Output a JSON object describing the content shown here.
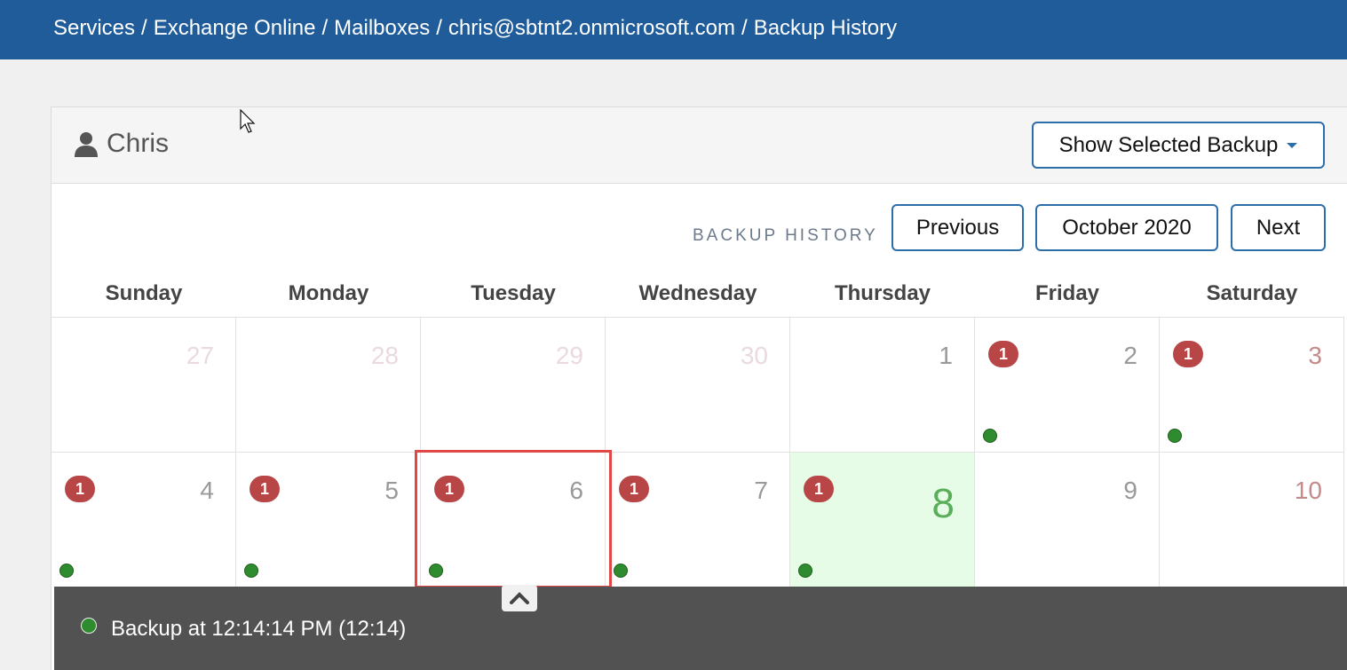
{
  "breadcrumb": [
    "Services",
    "Exchange Online",
    "Mailboxes",
    "chris@sbtnt2.onmicrosoft.com",
    "Backup History"
  ],
  "user": {
    "name": "Chris",
    "icon": "user-icon"
  },
  "show_backup_button": "Show Selected Backup",
  "section_label": "BACKUP HISTORY",
  "nav": {
    "previous": "Previous",
    "month": "October 2020",
    "next": "Next"
  },
  "weekdays": [
    "Sunday",
    "Monday",
    "Tuesday",
    "Wednesday",
    "Thursday",
    "Friday",
    "Saturday"
  ],
  "weeks": [
    [
      {
        "day": "27",
        "outside": true
      },
      {
        "day": "28",
        "outside": true
      },
      {
        "day": "29",
        "outside": true
      },
      {
        "day": "30",
        "outside": true
      },
      {
        "day": "1"
      },
      {
        "day": "2",
        "badge": "1",
        "backup": true
      },
      {
        "day": "3",
        "badge": "1",
        "backup": true
      }
    ],
    [
      {
        "day": "4",
        "badge": "1",
        "backup": true
      },
      {
        "day": "5",
        "badge": "1",
        "backup": true
      },
      {
        "day": "6",
        "badge": "1",
        "backup": true,
        "selected": true
      },
      {
        "day": "7",
        "badge": "1",
        "backup": true
      },
      {
        "day": "8",
        "badge": "1",
        "backup": true,
        "today": true
      },
      {
        "day": "9"
      },
      {
        "day": "10"
      }
    ]
  ],
  "popover": {
    "entry": "Backup at 12:14:14 PM (12:14)"
  },
  "colors": {
    "header": "#1f5c99",
    "badge": "#b94646",
    "backup_dot": "#2e8b2e",
    "today_bg": "#e6fce6",
    "selection": "#e04848"
  }
}
